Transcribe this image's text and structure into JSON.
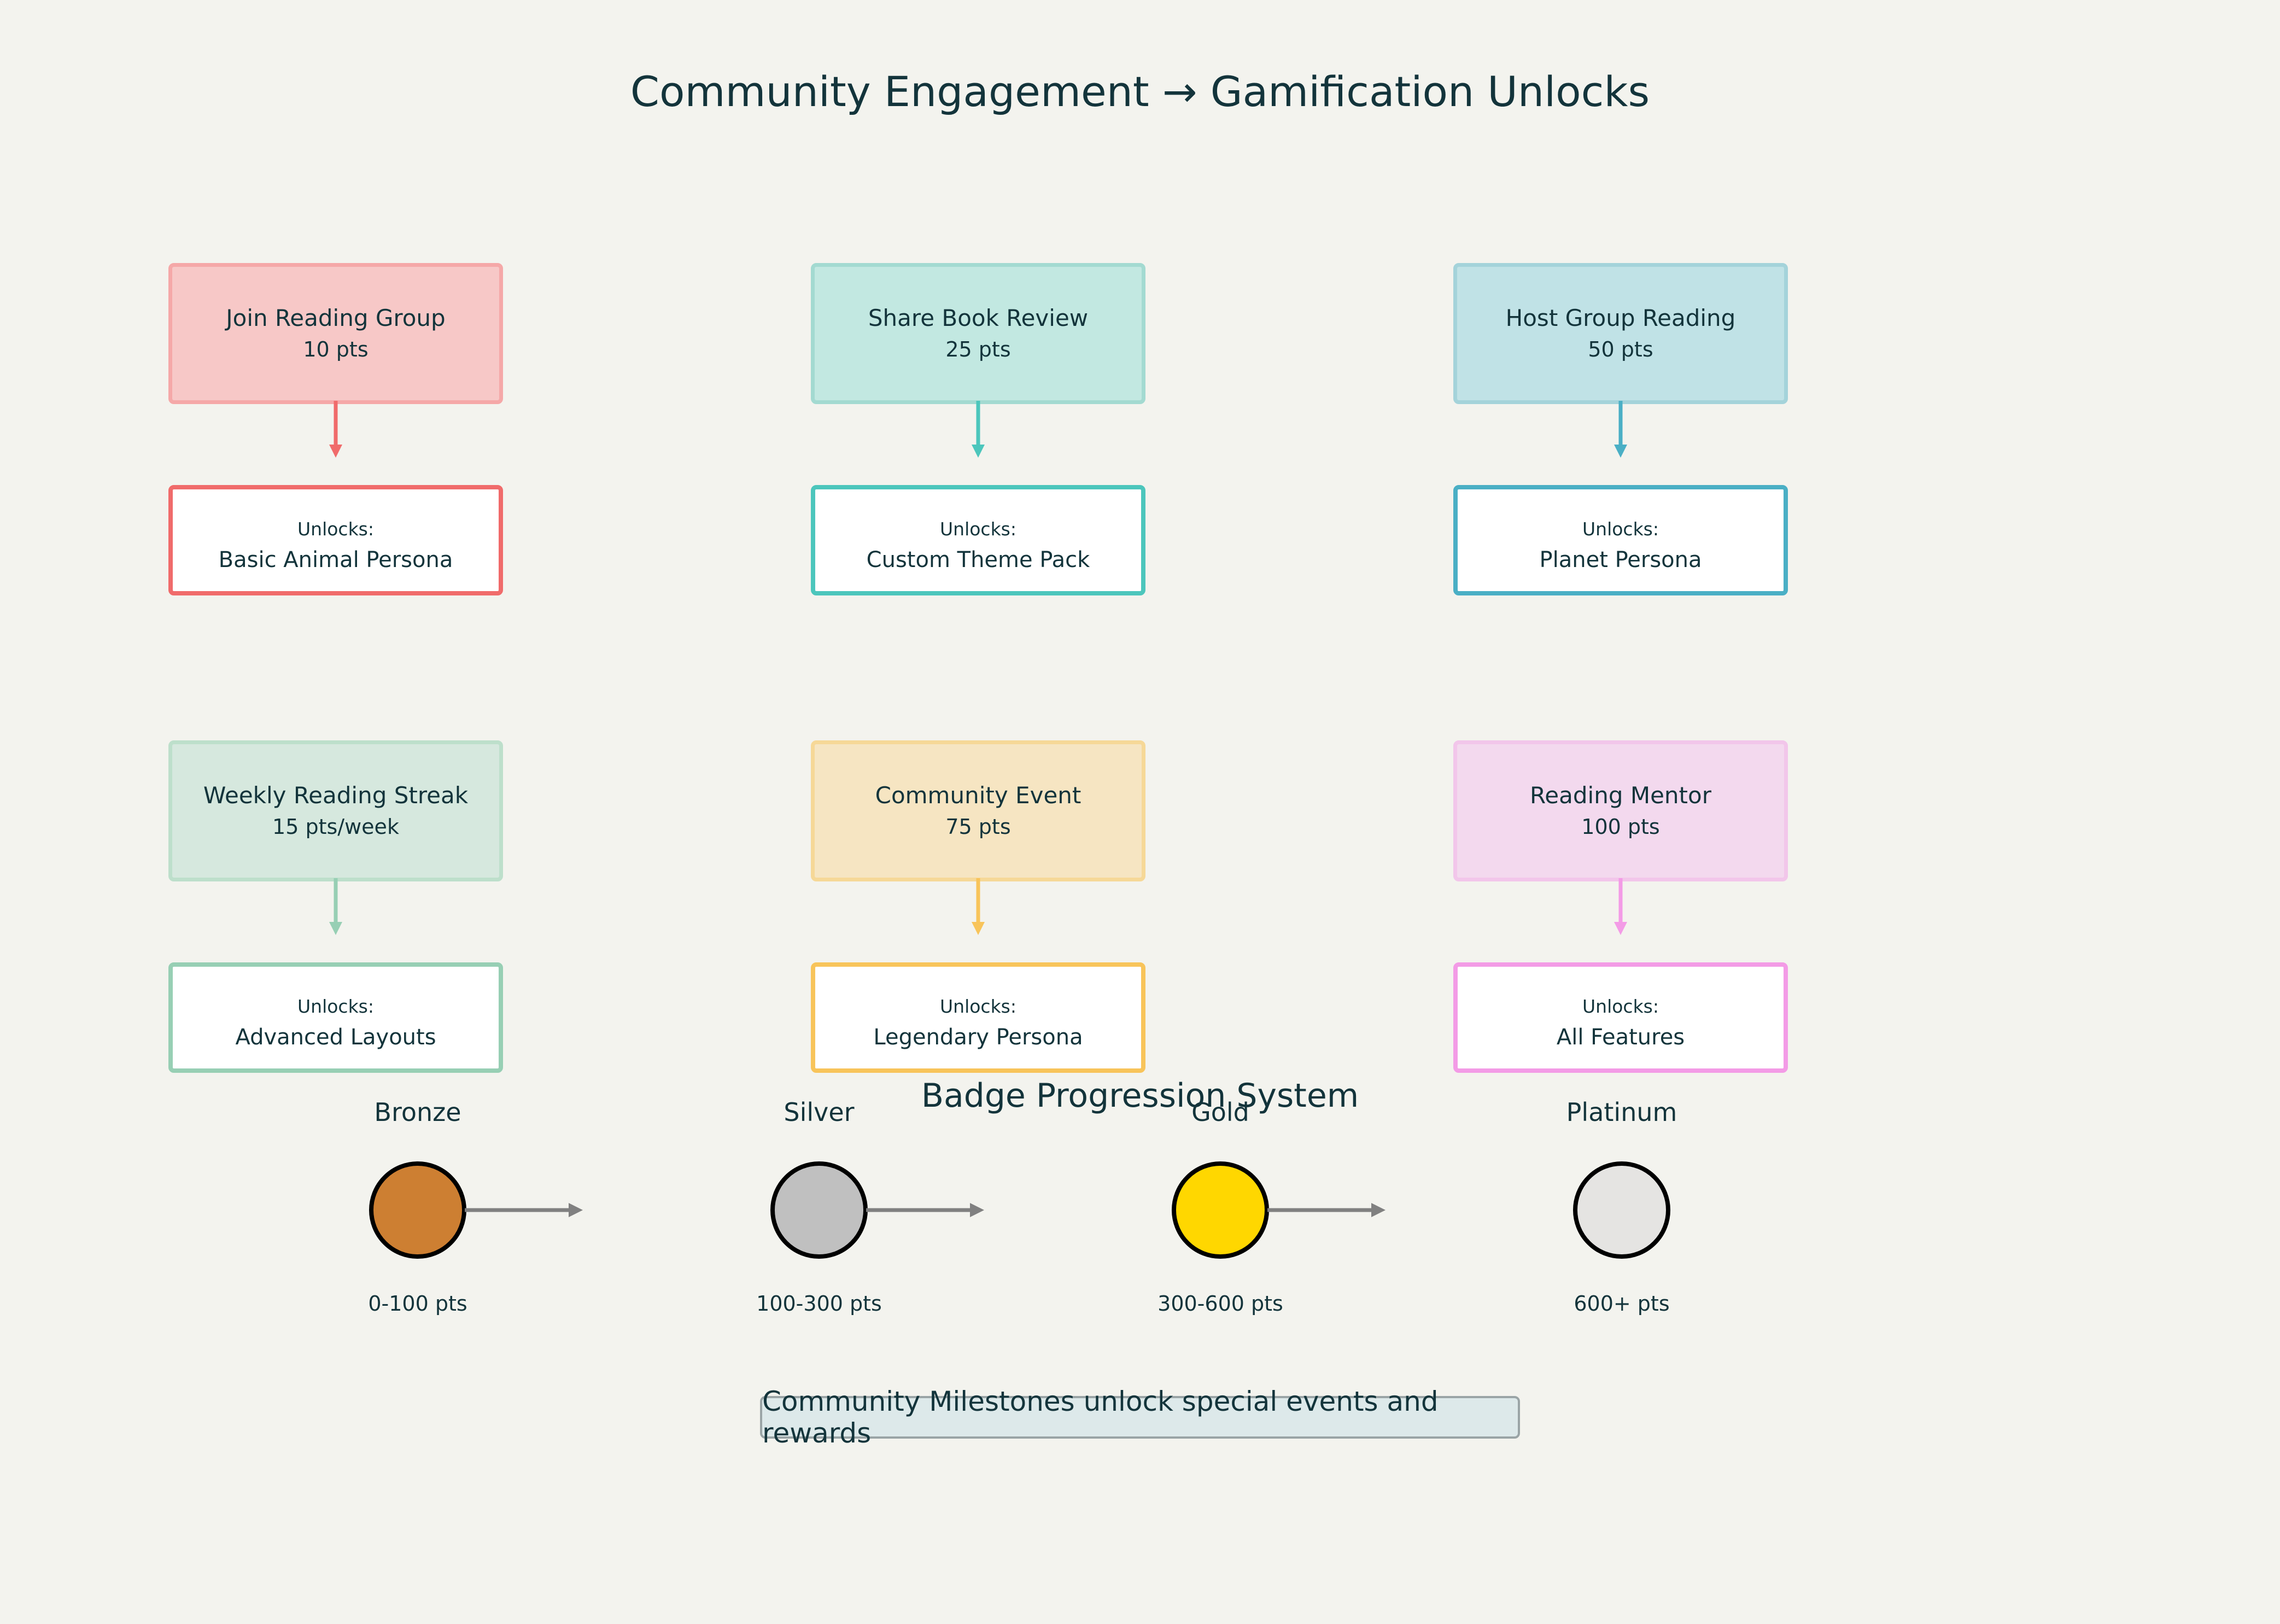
{
  "title": "Community Engagement → Gamification Unlocks",
  "actions": [
    {
      "label": "Join Reading Group",
      "points": "10 pts",
      "unlock_prefix": "Unlocks:",
      "unlock": "Basic Animal Persona",
      "fill": "#f7c8c7",
      "light_border": "#f5a8a8",
      "accent": "#f06b6b"
    },
    {
      "label": "Share Book Review",
      "points": "25 pts",
      "unlock_prefix": "Unlocks:",
      "unlock": "Custom Theme Pack",
      "fill": "#c2e8e1",
      "light_border": "#a3dad1",
      "accent": "#4cc6bc"
    },
    {
      "label": "Host Group Reading",
      "points": "50 pts",
      "unlock_prefix": "Unlocks:",
      "unlock": "Planet Persona",
      "fill": "#c0e2e6",
      "light_border": "#a4d3da",
      "accent": "#4aafc5"
    },
    {
      "label": "Weekly Reading Streak",
      "points": "15 pts/week",
      "unlock_prefix": "Unlocks:",
      "unlock": "Advanced Layouts",
      "fill": "#d6e8de",
      "light_border": "#bddfcb",
      "accent": "#97cfb4"
    },
    {
      "label": "Community Event",
      "points": "75 pts",
      "unlock_prefix": "Unlocks:",
      "unlock": "Legendary Persona",
      "fill": "#f6e5c2",
      "light_border": "#f6d897",
      "accent": "#f8c45a"
    },
    {
      "label": "Reading Mentor",
      "points": "100 pts",
      "unlock_prefix": "Unlocks:",
      "unlock": "All Features",
      "fill": "#f3d9ee",
      "light_border": "#f2c6ea",
      "accent": "#f39be6"
    }
  ],
  "badges": {
    "title": "Badge Progression System",
    "levels": [
      {
        "name": "Bronze",
        "range": "0-100 pts",
        "color": "#cd7f32"
      },
      {
        "name": "Silver",
        "range": "100-300 pts",
        "color": "#c0c0c0"
      },
      {
        "name": "Gold",
        "range": "300-600 pts",
        "color": "#ffd700"
      },
      {
        "name": "Platinum",
        "range": "600+ pts",
        "color": "#e5e4e2"
      }
    ],
    "arrow_color": "#808080"
  },
  "footer_note": "Community Milestones unlock special events and rewards"
}
